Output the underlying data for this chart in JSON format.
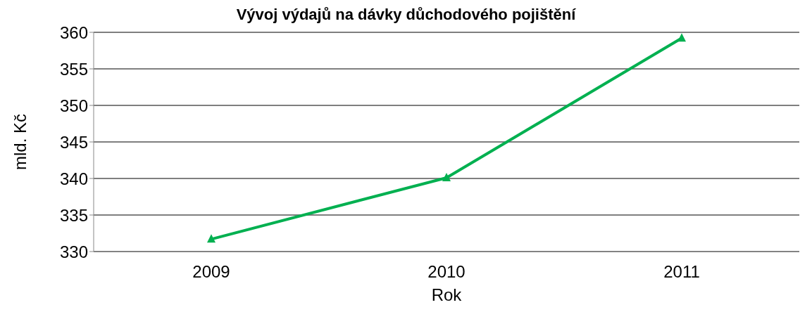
{
  "chart_data": {
    "type": "line",
    "title": "Vývoj výdajů na dávky důchodového pojištění",
    "xlabel": "Rok",
    "ylabel": "mld. Kč",
    "categories": [
      "2009",
      "2010",
      "2011"
    ],
    "series": [
      {
        "color": "#00b050",
        "values": [
          331.7,
          340.1,
          359.2
        ]
      }
    ],
    "ylim": [
      330,
      360
    ],
    "yticks": [
      330,
      335,
      340,
      345,
      350,
      355,
      360
    ],
    "grid": "y",
    "marker": "triangle",
    "line_style": "solid",
    "legend": false
  }
}
